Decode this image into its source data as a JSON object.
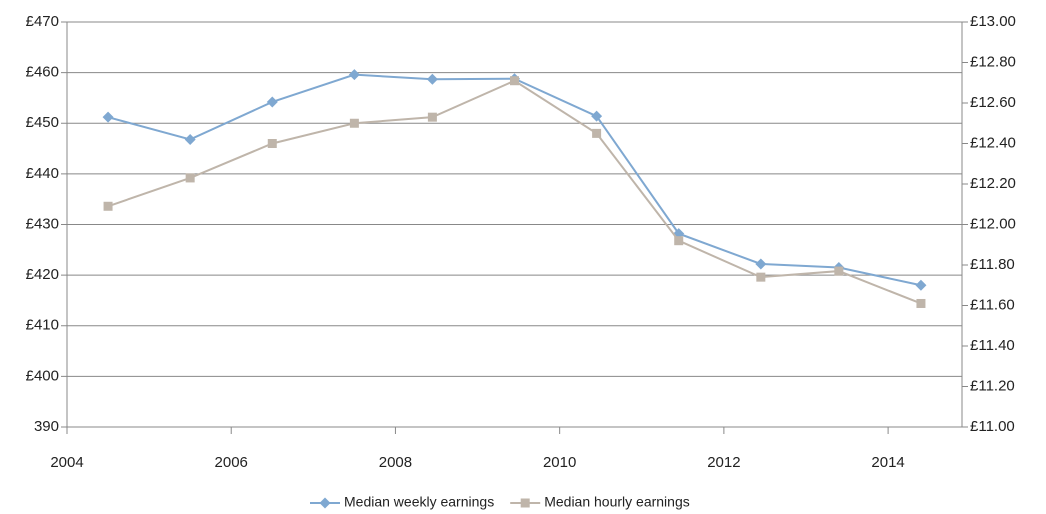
{
  "chart_data": {
    "type": "line",
    "x": [
      2004.5,
      2005.5,
      2006.5,
      2007.5,
      2008.45,
      2009.45,
      2010.45,
      2011.45,
      2012.45,
      2013.4,
      2014.4
    ],
    "series": [
      {
        "name": "Median weekly earnings",
        "color": "#7fa8d1",
        "marker": "diamond",
        "axis": "y",
        "values": [
          451.2,
          446.8,
          454.2,
          459.6,
          458.7,
          458.8,
          451.4,
          428.2,
          422.2,
          421.5,
          418.0
        ]
      },
      {
        "name": "Median hourly earnings",
        "color": "#bfb5aa",
        "marker": "square",
        "axis": "y2",
        "values": [
          12.09,
          12.23,
          12.4,
          12.5,
          12.53,
          12.71,
          12.45,
          11.92,
          11.74,
          11.77,
          11.61
        ]
      }
    ],
    "xlim": [
      2004,
      2014.9
    ],
    "xticks": [
      2004,
      2006,
      2008,
      2010,
      2012,
      2014
    ],
    "ylim": [
      390,
      470
    ],
    "yticks": [
      390,
      {
        "value": 400,
        "label": "£400"
      },
      {
        "value": 410,
        "label": "£410"
      },
      {
        "value": 420,
        "label": "£420"
      },
      {
        "value": 430,
        "label": "£430"
      },
      {
        "value": 440,
        "label": "£440"
      },
      {
        "value": 450,
        "label": "£450"
      },
      {
        "value": 460,
        "label": "£460"
      },
      {
        "value": 470,
        "label": "£470"
      }
    ],
    "y2lim": [
      11,
      13
    ],
    "y2ticks": [
      {
        "value": 11,
        "label": "£11.00"
      },
      {
        "value": 11.2,
        "label": "£11.20"
      },
      {
        "value": 11.4,
        "label": "£11.40"
      },
      {
        "value": 11.6,
        "label": "£11.60"
      },
      {
        "value": 11.8,
        "label": "£11.80"
      },
      {
        "value": 12,
        "label": "£12.00"
      },
      {
        "value": 12.2,
        "label": "£12.20"
      },
      {
        "value": 12.4,
        "label": "£12.40"
      },
      {
        "value": 12.6,
        "label": "£12.60"
      },
      {
        "value": 12.8,
        "label": "£12.80"
      },
      {
        "value": 13,
        "label": "£13.00"
      }
    ],
    "grid": true,
    "legend": "bottom"
  }
}
